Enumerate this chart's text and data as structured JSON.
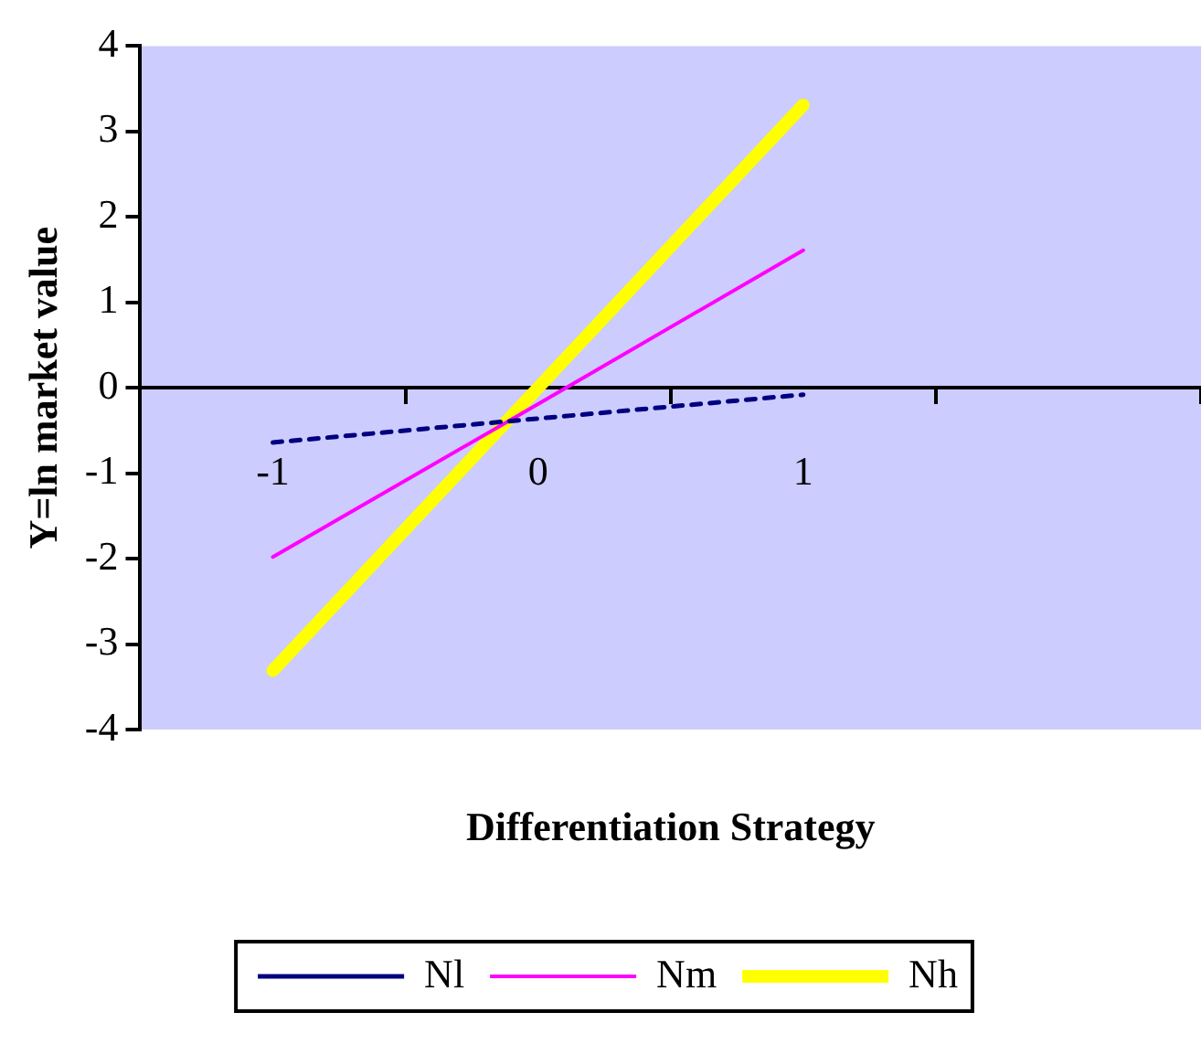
{
  "chart_data": {
    "type": "line",
    "xlabel": "Differentiation Strategy",
    "ylabel": "Y=ln market value",
    "categories": [
      "-1",
      "0",
      "1",
      null
    ],
    "series": [
      {
        "name": "Nl",
        "color": "#000080",
        "values": [
          -0.64,
          -0.36,
          -0.08,
          null
        ],
        "line_style": "dashed"
      },
      {
        "name": "Nm",
        "color": "#ff00ff",
        "values": [
          -1.98,
          -0.19,
          1.61,
          null
        ],
        "line_style": "solid"
      },
      {
        "name": "Nh",
        "color": "#ffff00",
        "values": [
          -3.31,
          0,
          3.31,
          null
        ],
        "line_style": "solid"
      }
    ],
    "ylim": [
      -4,
      4
    ],
    "yticks": [
      -4,
      -3,
      -2,
      -1,
      0,
      1,
      2,
      3,
      4
    ],
    "legend": "bottom",
    "marker": "none"
  }
}
